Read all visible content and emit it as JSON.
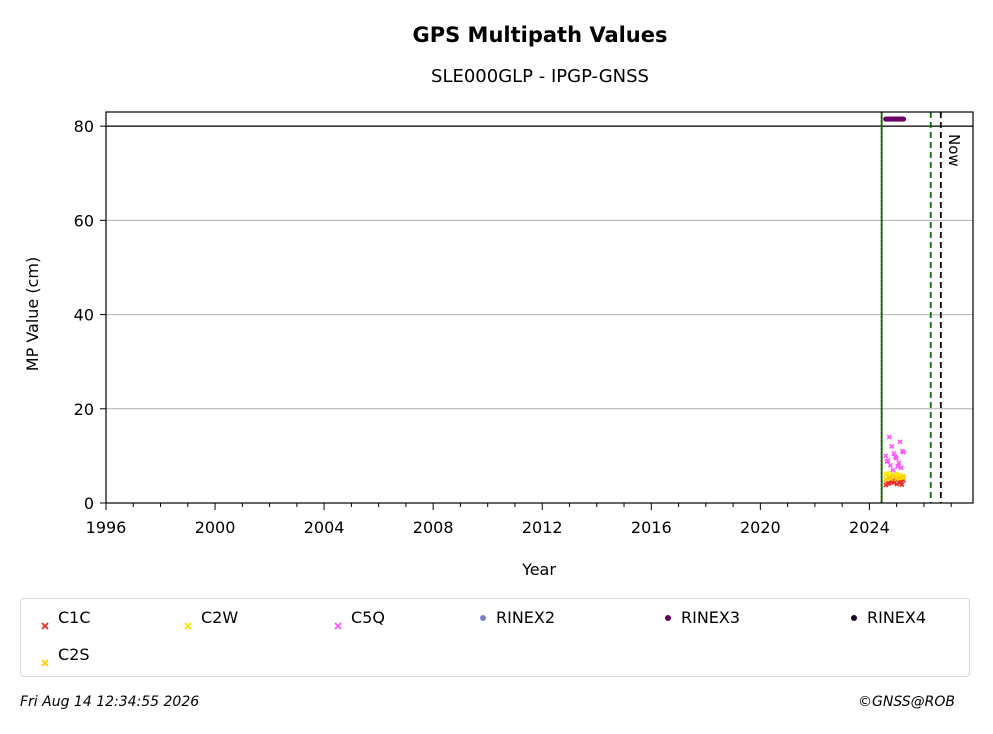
{
  "chart_data": {
    "type": "scatter",
    "title": "GPS Multipath Values",
    "subtitle": "SLE000GLP - IPGP-GNSS",
    "xlabel": "Year",
    "ylabel": "MP Value (cm)",
    "xlim": [
      1996.0,
      2027.8
    ],
    "ylim": [
      0,
      83
    ],
    "x_ticks": [
      1996,
      2000,
      2004,
      2008,
      2012,
      2016,
      2020,
      2024
    ],
    "y_ticks": [
      0,
      20,
      40,
      60,
      80
    ],
    "grid": "y",
    "reference_line_y": 80,
    "vertical_lines": [
      {
        "x": 2024.45,
        "color": "#c00000",
        "style": "dotted"
      },
      {
        "x": 2024.45,
        "color": "#007000",
        "style": "solid"
      },
      {
        "x": 2026.25,
        "color": "#007000",
        "style": "dashed"
      },
      {
        "x": 2026.62,
        "color": "#000000",
        "style": "dashed",
        "label": "Now"
      }
    ],
    "series": [
      {
        "name": "C1C",
        "color": "#e8312c",
        "marker": "x",
        "x_range": [
          2024.6,
          2025.25
        ],
        "values": [
          3.8,
          4.0,
          4.2,
          4.5,
          4.6,
          4.8,
          5.0,
          4.1,
          4.4,
          4.7,
          3.9,
          4.3
        ]
      },
      {
        "name": "C2W",
        "color": "#ffe600",
        "marker": "x",
        "x_range": [
          2024.6,
          2025.25
        ],
        "values": [
          5.2,
          5.5,
          5.8,
          6.0,
          6.2,
          5.6,
          5.9,
          6.1,
          5.4,
          5.7,
          6.3,
          5.3
        ]
      },
      {
        "name": "C5Q",
        "color": "#ff55ff",
        "marker": "x",
        "x_range": [
          2024.6,
          2025.25
        ],
        "values": [
          7.0,
          7.5,
          8.0,
          8.5,
          9.0,
          9.5,
          10.0,
          10.5,
          11.0,
          12.0,
          13.0,
          14.0,
          7.8,
          8.8,
          9.8,
          10.8
        ]
      },
      {
        "name": "RINEX2",
        "color": "#7e7ec8",
        "marker": "dot",
        "x_range": [
          2024.6,
          2025.25
        ],
        "values": []
      },
      {
        "name": "RINEX3",
        "color": "#6a0068",
        "marker": "dot",
        "x_range": [
          2024.6,
          2025.25
        ],
        "values": [
          81.5
        ]
      },
      {
        "name": "RINEX4",
        "color": "#14001e",
        "marker": "dot",
        "x_range": [
          2024.6,
          2025.25
        ],
        "values": []
      },
      {
        "name": "C2S",
        "color": "#ffcc00",
        "marker": "x",
        "x_range": [
          2024.6,
          2025.25
        ],
        "values": [
          5.0,
          5.3,
          5.6,
          5.1,
          5.4,
          5.7
        ]
      }
    ]
  },
  "footer": {
    "timestamp": "Fri Aug 14 12:34:55 2026",
    "credit": "©GNSS@ROB"
  }
}
